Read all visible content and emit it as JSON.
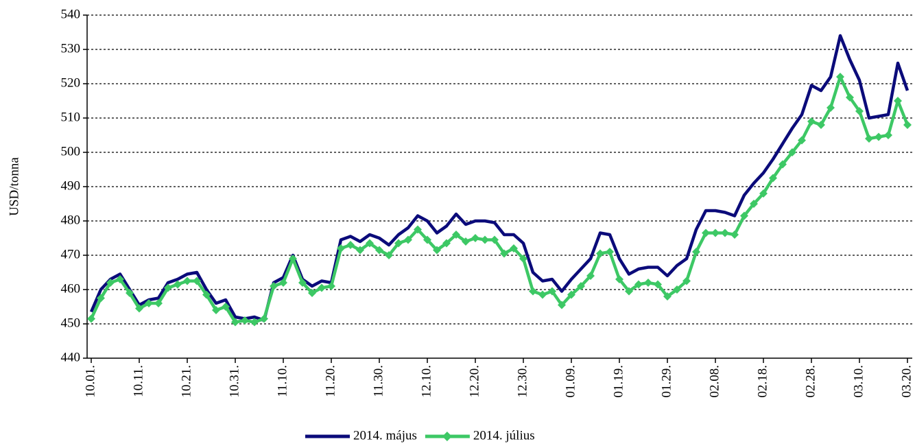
{
  "chart_data": {
    "type": "line",
    "ylabel": "USD/tonna",
    "categories": [
      "10.01.",
      null,
      null,
      null,
      null,
      "10.11.",
      null,
      null,
      null,
      null,
      "10.21.",
      null,
      null,
      null,
      null,
      "10.31.",
      null,
      null,
      null,
      null,
      "11.10.",
      null,
      null,
      null,
      null,
      "11.20.",
      null,
      null,
      null,
      null,
      "11.30.",
      null,
      null,
      null,
      null,
      "12.10.",
      null,
      null,
      null,
      null,
      "12.20.",
      null,
      null,
      null,
      null,
      "12.30.",
      null,
      null,
      null,
      null,
      "01.09.",
      null,
      null,
      null,
      null,
      "01.19.",
      null,
      null,
      null,
      null,
      "01.29.",
      null,
      null,
      null,
      null,
      "02.08.",
      null,
      null,
      null,
      null,
      "02.18.",
      null,
      null,
      null,
      null,
      "02.28.",
      null,
      null,
      null,
      null,
      "03.10.",
      null,
      null,
      null,
      null,
      "03.20."
    ],
    "series": [
      {
        "name": "2014. május",
        "color": "#0b0b7a",
        "marker": false,
        "values": [
          453.5,
          460,
          463,
          464.5,
          460,
          455.5,
          457,
          457.5,
          462,
          463,
          464.5,
          465,
          460,
          456,
          457,
          452,
          451.5,
          452,
          451,
          462,
          463.5,
          470,
          463,
          461,
          462.5,
          462,
          474.5,
          475.5,
          474,
          476,
          475,
          473,
          476,
          478,
          481.5,
          480,
          476.5,
          478.5,
          482,
          479,
          480,
          480,
          479.5,
          476,
          476,
          473.5,
          465,
          462.5,
          463,
          459.5,
          463,
          466,
          469,
          476.5,
          476,
          469,
          464.5,
          466,
          466.5,
          466.5,
          464,
          467,
          469,
          477.5,
          483,
          483,
          482.5,
          481.5,
          487.5,
          491,
          494,
          498,
          502.5,
          507,
          511,
          519.5,
          518,
          522,
          534,
          527,
          521,
          510,
          510.5,
          511,
          526,
          518
        ]
      },
      {
        "name": "2014. július",
        "color": "#3dc865",
        "marker": true,
        "values": [
          451.5,
          457.5,
          462,
          463,
          459,
          454.5,
          456,
          456,
          460.5,
          461.5,
          462.5,
          462.5,
          458.5,
          454,
          455,
          450.5,
          451,
          450.5,
          451.5,
          461,
          462,
          469,
          462,
          459,
          460.5,
          461,
          472,
          473,
          471.5,
          473.5,
          471.5,
          470,
          473.5,
          474.5,
          477.5,
          474.5,
          471.5,
          473.5,
          476,
          474,
          475,
          474.5,
          474.5,
          470.5,
          472,
          469,
          459.5,
          458.5,
          459.5,
          455.5,
          458.5,
          461,
          464,
          470.5,
          471,
          463,
          459.5,
          461.5,
          462,
          461.5,
          458,
          460,
          462.5,
          471,
          476.5,
          476.5,
          476.5,
          476,
          481.5,
          485,
          488,
          492.5,
          496.5,
          500,
          503.5,
          509,
          508,
          513,
          522,
          516,
          512,
          504,
          504.5,
          505,
          515,
          508
        ]
      }
    ],
    "ylim": [
      440,
      540
    ],
    "yticks": [
      440,
      450,
      460,
      470,
      480,
      490,
      500,
      510,
      520,
      530,
      540
    ],
    "grid": true,
    "legend": "bottom"
  }
}
